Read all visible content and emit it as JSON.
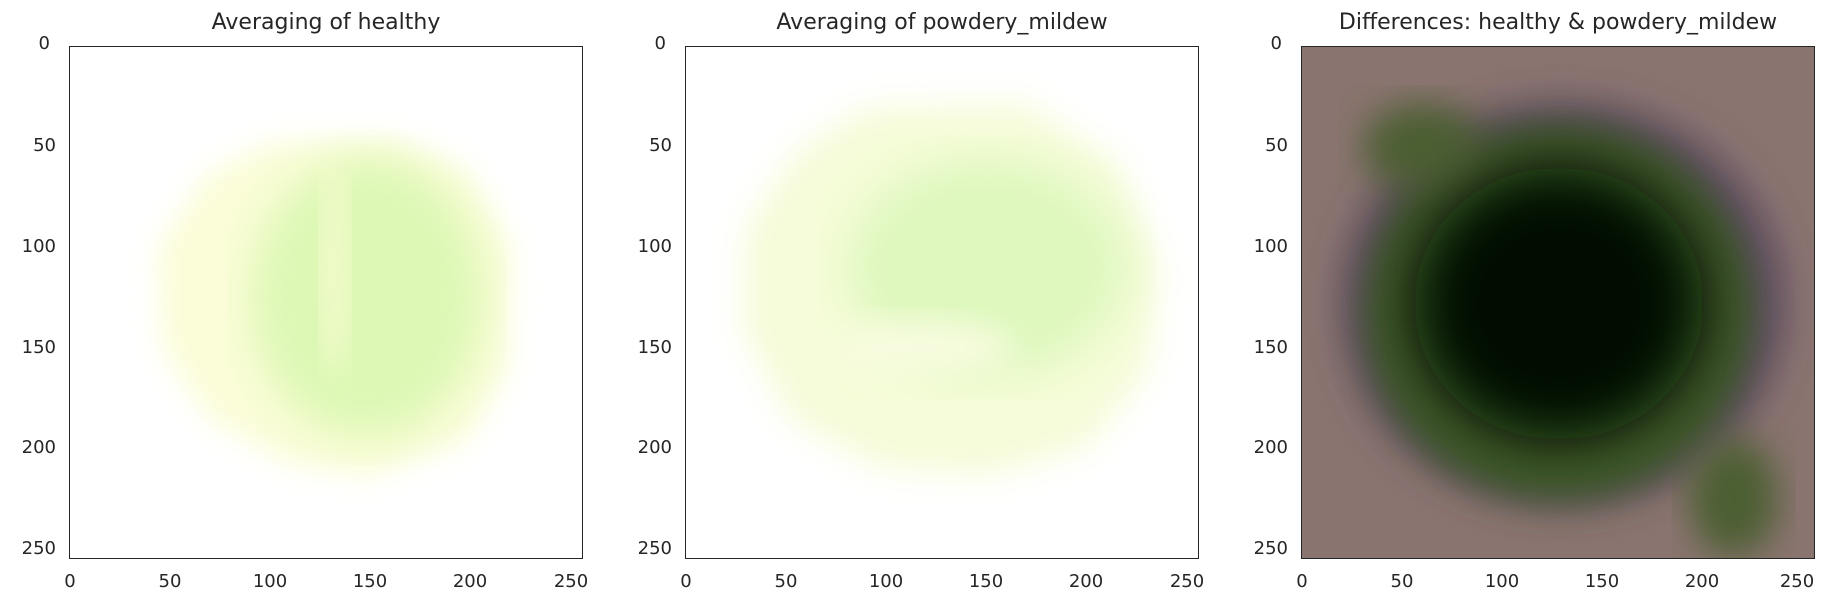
{
  "chart_data": [
    {
      "type": "heatmap",
      "title": "Averaging of healthy",
      "image_size": [
        256,
        256
      ],
      "xlim": [
        0,
        256
      ],
      "ylim": [
        256,
        0
      ],
      "xticks": [
        0,
        50,
        100,
        150,
        200,
        250
      ],
      "yticks": [
        0,
        50,
        100,
        150,
        200,
        250
      ],
      "colors": {
        "background": "#ffffff",
        "leaf_outer": "#fbfdd8",
        "leaf_inner": "#dcf8b4"
      },
      "leaf_bbox_pixels": {
        "x_range": [
          40,
          220
        ],
        "y_range": [
          45,
          215
        ]
      }
    },
    {
      "type": "heatmap",
      "title": "Averaging of powdery_mildew",
      "image_size": [
        256,
        256
      ],
      "xlim": [
        0,
        256
      ],
      "ylim": [
        256,
        0
      ],
      "xticks": [
        0,
        50,
        100,
        150,
        200,
        250
      ],
      "yticks": [
        0,
        50,
        100,
        150,
        200,
        250
      ],
      "colors": {
        "background": "#ffffff",
        "leaf_outer": "#f6fcd9",
        "leaf_inner": "#def8bd"
      },
      "leaf_bbox_pixels": {
        "x_range": [
          25,
          235
        ],
        "y_range": [
          25,
          215
        ]
      }
    },
    {
      "type": "heatmap",
      "title": "Differences: healthy & powdery_mildew",
      "image_size": [
        256,
        256
      ],
      "xlim": [
        0,
        256
      ],
      "ylim": [
        256,
        0
      ],
      "xticks": [
        0,
        50,
        100,
        150,
        200,
        250
      ],
      "yticks": [
        0,
        50,
        100,
        150,
        200,
        250
      ],
      "colors": {
        "background": "#8a7470",
        "ring_green": "#3c5a26",
        "ring_purple": "#5e4866",
        "center": "#050805"
      },
      "dark_region_pixels": {
        "x_range": [
          30,
          230
        ],
        "y_range": [
          30,
          230
        ]
      }
    }
  ]
}
